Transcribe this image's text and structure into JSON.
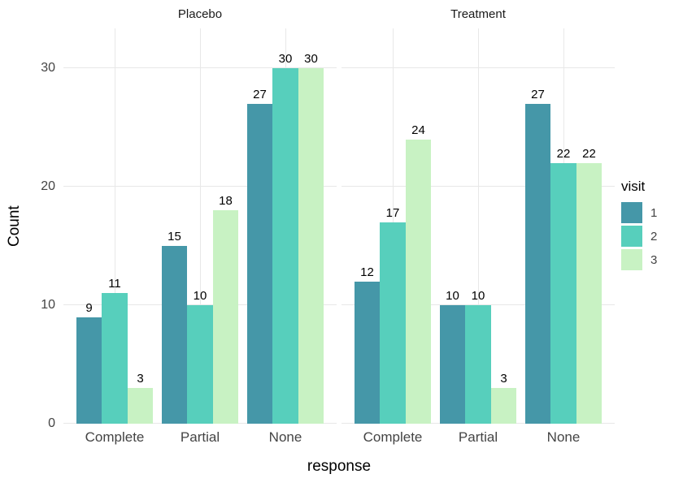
{
  "chart_data": {
    "type": "bar",
    "subtype": "grouped-dodged-faceted",
    "title": "",
    "xlabel": "response",
    "ylabel": "Count",
    "categories": [
      "Complete",
      "Partial",
      "None"
    ],
    "y_ticks": [
      0,
      10,
      20,
      30
    ],
    "ylim": [
      0,
      33.3
    ],
    "grid": true,
    "bar_value_labels": true,
    "facets": [
      {
        "label": "Placebo",
        "series": [
          {
            "name": "1",
            "values": [
              9,
              15,
              27
            ]
          },
          {
            "name": "2",
            "values": [
              11,
              10,
              30
            ]
          },
          {
            "name": "3",
            "values": [
              3,
              18,
              30
            ]
          }
        ]
      },
      {
        "label": "Treatment",
        "series": [
          {
            "name": "1",
            "values": [
              12,
              10,
              27
            ]
          },
          {
            "name": "2",
            "values": [
              17,
              10,
              22
            ]
          },
          {
            "name": "3",
            "values": [
              24,
              3,
              22
            ]
          }
        ]
      }
    ],
    "legend": {
      "title": "visit",
      "position": "right",
      "entries": [
        {
          "label": "1",
          "color": "#4597a8"
        },
        {
          "label": "2",
          "color": "#57cfbc"
        },
        {
          "label": "3",
          "color": "#c8f2c3"
        }
      ]
    }
  }
}
